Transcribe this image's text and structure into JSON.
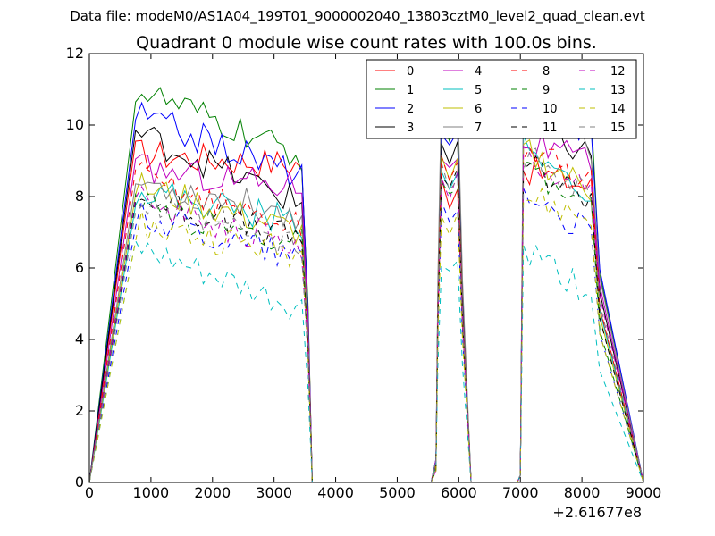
{
  "chart_data": {
    "type": "line",
    "suptitle": "Data file: modeM0/AS1A04_199T01_9000002040_13803cztM0_level2_quad_clean.evt",
    "title": "Quadrant 0 module wise count rates with 100.0s bins.",
    "xlabel": "",
    "ylabel": "",
    "xlim": [
      0,
      9000
    ],
    "ylim": [
      0,
      12
    ],
    "x_ticks": [
      "0",
      "1000",
      "2000",
      "3000",
      "4000",
      "5000",
      "6000",
      "7000",
      "8000",
      "9000"
    ],
    "y_ticks": [
      "0",
      "2",
      "4",
      "6",
      "8",
      "10",
      "12"
    ],
    "x_offset_label": "+2.61677e8",
    "legend_position": "top-right",
    "segments": [
      {
        "start": 750,
        "end": 3450,
        "drop_end": 3620
      },
      {
        "start": 5550,
        "peak_start": 5720,
        "peak_end": 5980,
        "end": 6200
      },
      {
        "start": 6950,
        "peak_start": 7050,
        "end": 8230,
        "drop_end": 8290
      }
    ],
    "series": [
      {
        "name": "0",
        "color": "#ff0000",
        "dash": "solid",
        "levels": [
          9.2,
          8.9,
          8.8,
          8.2
        ]
      },
      {
        "name": "1",
        "color": "#008000",
        "dash": "solid",
        "levels": [
          11.0,
          9.1,
          10.6,
          10.2
        ]
      },
      {
        "name": "2",
        "color": "#0000ff",
        "dash": "solid",
        "levels": [
          10.3,
          8.6,
          10.2,
          9.8
        ]
      },
      {
        "name": "3",
        "color": "#000000",
        "dash": "solid",
        "levels": [
          9.8,
          7.8,
          10.0,
          9.1
        ]
      },
      {
        "name": "4",
        "color": "#bf00bf",
        "dash": "solid",
        "levels": [
          8.8,
          8.3,
          9.6,
          8.8
        ]
      },
      {
        "name": "5",
        "color": "#00bfbf",
        "dash": "solid",
        "levels": [
          8.2,
          7.3,
          9.3,
          8.0
        ]
      },
      {
        "name": "6",
        "color": "#bfbf00",
        "dash": "solid",
        "levels": [
          8.3,
          7.0,
          9.3,
          8.1
        ]
      },
      {
        "name": "7",
        "color": "#808080",
        "dash": "solid",
        "levels": [
          8.4,
          7.5,
          11.3,
          9.3
        ]
      },
      {
        "name": "8",
        "color": "#ff0000",
        "dash": "dashed",
        "levels": [
          8.6,
          7.1,
          9.4,
          8.3
        ]
      },
      {
        "name": "9",
        "color": "#008000",
        "dash": "dashed",
        "levels": [
          7.7,
          6.7,
          8.7,
          7.6
        ]
      },
      {
        "name": "10",
        "color": "#0000ff",
        "dash": "dashed",
        "levels": [
          7.5,
          6.3,
          8.2,
          6.8
        ]
      },
      {
        "name": "11",
        "color": "#000000",
        "dash": "dashed",
        "levels": [
          8.0,
          6.8,
          9.0,
          7.9
        ]
      },
      {
        "name": "12",
        "color": "#bf00bf",
        "dash": "dashed",
        "levels": [
          7.9,
          6.6,
          9.0,
          8.3
        ]
      },
      {
        "name": "13",
        "color": "#00bfbf",
        "dash": "dashed",
        "levels": [
          6.5,
          4.8,
          6.5,
          5.2
        ]
      },
      {
        "name": "14",
        "color": "#bfbf00",
        "dash": "dashed",
        "levels": [
          7.2,
          6.4,
          8.0,
          7.3
        ]
      },
      {
        "name": "15",
        "color": "#808080",
        "dash": "dashed",
        "levels": [
          7.8,
          6.5,
          9.1,
          8.1
        ]
      }
    ]
  }
}
